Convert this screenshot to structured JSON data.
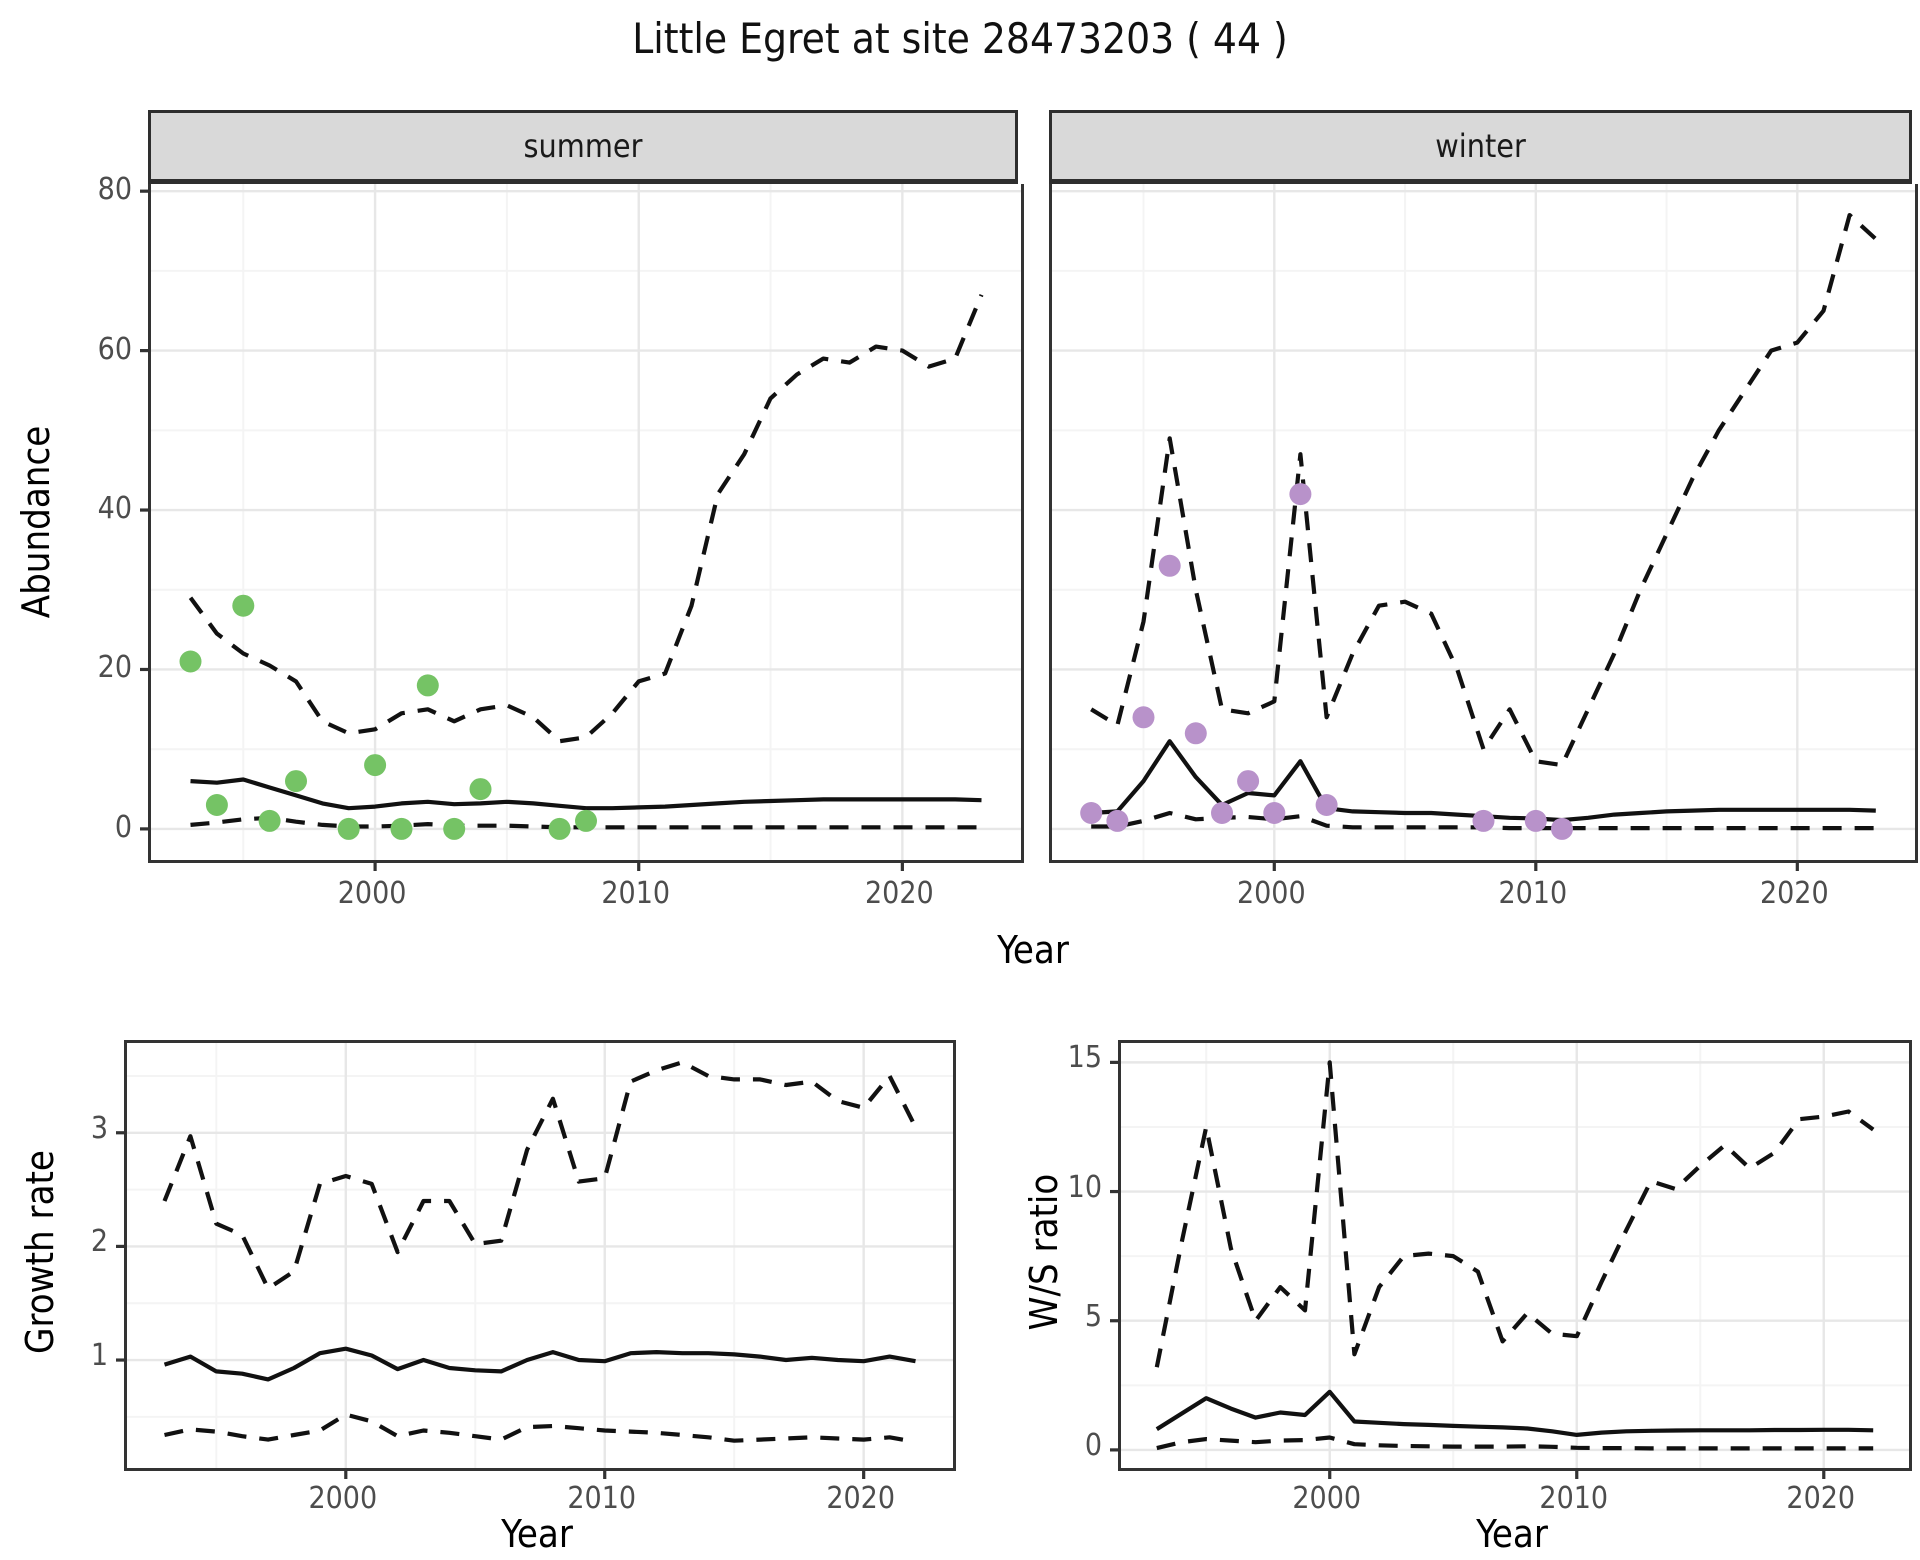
{
  "title": "Little Egret at site 28473203 ( 44 )",
  "style": {
    "summer_point_color": "#75c365",
    "winter_point_color": "#b892ca",
    "line_color": "#111111",
    "grid_major": "#e7e7e7",
    "grid_minor": "#f4f4f4",
    "strip_fill": "#d9d9d9",
    "border_color": "#333333",
    "tick_color": "#333333",
    "tick_label_color": "#4d4d4d"
  },
  "top_row": {
    "y_axis_label": "Abundance",
    "x_axis_label": "Year",
    "facets": [
      {
        "label": "summer"
      },
      {
        "label": "winter"
      }
    ]
  },
  "bottom_row": {
    "plots": [
      {
        "y_axis_label": "Growth rate",
        "x_axis_label": "Year"
      },
      {
        "y_axis_label": "W/S ratio",
        "x_axis_label": "Year"
      }
    ]
  },
  "chart_data": [
    {
      "id": "abundance-summer",
      "type": "line",
      "facet": "summer",
      "ylabel": "Abundance",
      "xlabel": "Year",
      "xlim": [
        1991.5,
        2024.5
      ],
      "ylim": [
        -3.9,
        80.9
      ],
      "xticks": [
        2000,
        2010,
        2020
      ],
      "x_minor": [
        1995,
        2005,
        2015
      ],
      "yticks": [
        0,
        20,
        40,
        60,
        80
      ],
      "y_minor": [
        10,
        30,
        50,
        70
      ],
      "x": [
        1993,
        1994,
        1995,
        1996,
        1997,
        1998,
        1999,
        2000,
        2001,
        2002,
        2003,
        2004,
        2005,
        2006,
        2007,
        2008,
        2009,
        2010,
        2011,
        2012,
        2013,
        2014,
        2015,
        2016,
        2017,
        2018,
        2019,
        2020,
        2021,
        2022,
        2023
      ],
      "series": [
        {
          "name": "upper-ci",
          "style": "dashed",
          "values": [
            29,
            24.5,
            22,
            20.5,
            18.5,
            13.5,
            12,
            12.5,
            14.5,
            15,
            13.5,
            15,
            15.5,
            14,
            11,
            11.5,
            14.5,
            18.5,
            19.5,
            28,
            42,
            47,
            54,
            57,
            59,
            58.5,
            60.5,
            60,
            58,
            59,
            67
          ]
        },
        {
          "name": "estimate",
          "style": "solid",
          "values": [
            6,
            5.8,
            6.2,
            5.2,
            4.2,
            3.2,
            2.6,
            2.8,
            3.2,
            3.4,
            3.1,
            3.2,
            3.4,
            3.2,
            2.9,
            2.6,
            2.6,
            2.7,
            2.8,
            3,
            3.2,
            3.4,
            3.5,
            3.6,
            3.7,
            3.7,
            3.7,
            3.7,
            3.7,
            3.7,
            3.6
          ]
        },
        {
          "name": "lower-ci",
          "style": "dashed",
          "values": [
            0.5,
            0.8,
            1.2,
            1.4,
            0.9,
            0.5,
            0.3,
            0.3,
            0.4,
            0.6,
            0.4,
            0.4,
            0.4,
            0.3,
            0.2,
            0.2,
            0.2,
            0.2,
            0.2,
            0.2,
            0.2,
            0.2,
            0.2,
            0.2,
            0.2,
            0.2,
            0.2,
            0.2,
            0.2,
            0.2,
            0.2
          ]
        }
      ],
      "observed_points": {
        "color": "#75c365",
        "data": [
          [
            1993,
            21
          ],
          [
            1994,
            3
          ],
          [
            1995,
            28
          ],
          [
            1996,
            1
          ],
          [
            1997,
            6
          ],
          [
            1999,
            0
          ],
          [
            2000,
            8
          ],
          [
            2001,
            0
          ],
          [
            2002,
            18
          ],
          [
            2003,
            0
          ],
          [
            2004,
            5
          ],
          [
            2007,
            0
          ],
          [
            2008,
            1
          ]
        ]
      }
    },
    {
      "id": "abundance-winter",
      "type": "line",
      "facet": "winter",
      "ylabel": "Abundance",
      "xlabel": "Year",
      "xlim": [
        1991.5,
        2024.5
      ],
      "ylim": [
        -3.9,
        80.9
      ],
      "xticks": [
        2000,
        2010,
        2020
      ],
      "x_minor": [
        1995,
        2005,
        2015
      ],
      "yticks": [
        0,
        20,
        40,
        60,
        80
      ],
      "y_minor": [
        10,
        30,
        50,
        70
      ],
      "x": [
        1993,
        1994,
        1995,
        1996,
        1997,
        1998,
        1999,
        2000,
        2001,
        2002,
        2003,
        2004,
        2005,
        2006,
        2007,
        2008,
        2009,
        2010,
        2011,
        2012,
        2013,
        2014,
        2015,
        2016,
        2017,
        2018,
        2019,
        2020,
        2021,
        2022,
        2023
      ],
      "series": [
        {
          "name": "upper-ci",
          "style": "dashed",
          "values": [
            15,
            13,
            26,
            49,
            30,
            15,
            14.5,
            16,
            47,
            14,
            22,
            28,
            28.5,
            27,
            20,
            10,
            15,
            8.5,
            8,
            15,
            22,
            30,
            37,
            44,
            50,
            55,
            60,
            61,
            65,
            77,
            74
          ]
        },
        {
          "name": "estimate",
          "style": "solid",
          "values": [
            2,
            2.2,
            6,
            11,
            6.5,
            3,
            4.5,
            4.2,
            8.5,
            2.6,
            2.2,
            2.1,
            2,
            2,
            1.8,
            1.6,
            1.4,
            1.3,
            1.1,
            1.4,
            1.8,
            2,
            2.2,
            2.3,
            2.4,
            2.4,
            2.4,
            2.4,
            2.4,
            2.4,
            2.3
          ]
        },
        {
          "name": "lower-ci",
          "style": "dashed",
          "values": [
            0.3,
            0.3,
            1,
            2,
            1.2,
            1.4,
            1.5,
            1.2,
            1.6,
            0.4,
            0.2,
            0.2,
            0.2,
            0.2,
            0.2,
            0.2,
            0.1,
            0.1,
            0.1,
            0.1,
            0.1,
            0.1,
            0.1,
            0.1,
            0.1,
            0.1,
            0.1,
            0.1,
            0.1,
            0.1,
            0.1
          ]
        }
      ],
      "observed_points": {
        "color": "#b892ca",
        "data": [
          [
            1993,
            2
          ],
          [
            1994,
            1
          ],
          [
            1995,
            14
          ],
          [
            1996,
            33
          ],
          [
            1997,
            12
          ],
          [
            1998,
            2
          ],
          [
            1999,
            6
          ],
          [
            2000,
            2
          ],
          [
            2001,
            42
          ],
          [
            2002,
            3
          ],
          [
            2008,
            1
          ],
          [
            2010,
            1
          ],
          [
            2011,
            0
          ]
        ]
      }
    },
    {
      "id": "growth-rate",
      "type": "line",
      "ylabel": "Growth rate",
      "xlabel": "Year",
      "xlim": [
        1991.55,
        2023.45
      ],
      "ylim": [
        0.05,
        3.79
      ],
      "xticks": [
        2000,
        2010,
        2020
      ],
      "x_minor": [
        1995,
        2005,
        2015
      ],
      "yticks": [
        1,
        2,
        3
      ],
      "y_minor": [
        0.5,
        1.5,
        2.5,
        3.5
      ],
      "x": [
        1993,
        1994,
        1995,
        1996,
        1997,
        1998,
        1999,
        2000,
        2001,
        2002,
        2003,
        2004,
        2005,
        2006,
        2007,
        2008,
        2009,
        2010,
        2011,
        2012,
        2013,
        2014,
        2015,
        2016,
        2017,
        2018,
        2019,
        2020,
        2021,
        2022
      ],
      "series": [
        {
          "name": "upper-ci",
          "style": "dashed",
          "values": [
            2.4,
            2.97,
            2.2,
            2.1,
            1.63,
            1.78,
            2.55,
            2.62,
            2.55,
            1.95,
            2.4,
            2.4,
            2.02,
            2.05,
            2.85,
            3.3,
            2.57,
            2.6,
            3.45,
            3.55,
            3.62,
            3.5,
            3.47,
            3.47,
            3.42,
            3.45,
            3.28,
            3.22,
            3.5,
            3.05
          ]
        },
        {
          "name": "estimate",
          "style": "solid",
          "values": [
            0.96,
            1.03,
            0.9,
            0.88,
            0.83,
            0.93,
            1.06,
            1.1,
            1.04,
            0.92,
            1,
            0.93,
            0.91,
            0.9,
            1,
            1.07,
            1,
            0.99,
            1.06,
            1.07,
            1.06,
            1.06,
            1.05,
            1.03,
            1,
            1.02,
            1,
            0.99,
            1.03,
            0.99
          ]
        },
        {
          "name": "lower-ci",
          "style": "dashed",
          "values": [
            0.34,
            0.39,
            0.37,
            0.33,
            0.3,
            0.34,
            0.38,
            0.52,
            0.46,
            0.33,
            0.38,
            0.36,
            0.33,
            0.3,
            0.41,
            0.42,
            0.4,
            0.38,
            0.37,
            0.36,
            0.34,
            0.32,
            0.29,
            0.3,
            0.31,
            0.32,
            0.31,
            0.3,
            0.32,
            0.28
          ]
        }
      ]
    },
    {
      "id": "ws-ratio",
      "type": "line",
      "ylabel": "W/S ratio",
      "xlabel": "Year",
      "xlim": [
        1991.55,
        2023.45
      ],
      "ylim": [
        -0.7,
        15.75
      ],
      "xticks": [
        2000,
        2010,
        2020
      ],
      "x_minor": [
        1995,
        2005,
        2015
      ],
      "yticks": [
        0,
        5,
        10,
        15
      ],
      "y_minor": [
        2.5,
        7.5,
        12.5
      ],
      "x": [
        1993,
        1994,
        1995,
        1996,
        1997,
        1998,
        1999,
        2000,
        2001,
        2002,
        2003,
        2004,
        2005,
        2006,
        2007,
        2008,
        2009,
        2010,
        2011,
        2012,
        2013,
        2014,
        2015,
        2016,
        2017,
        2018,
        2019,
        2020,
        2021,
        2022
      ],
      "series": [
        {
          "name": "upper-ci",
          "style": "dashed",
          "values": [
            3.2,
            8,
            12.5,
            7.8,
            5,
            6.3,
            5.4,
            15,
            3.7,
            6.3,
            7.5,
            7.6,
            7.5,
            6.9,
            4.2,
            5.3,
            4.5,
            4.4,
            6.5,
            8.5,
            10.4,
            10.1,
            11,
            11.8,
            10.9,
            11.5,
            12.8,
            12.9,
            13.1,
            12.4
          ]
        },
        {
          "name": "estimate",
          "style": "solid",
          "values": [
            0.8,
            1.4,
            2,
            1.6,
            1.25,
            1.45,
            1.35,
            2.25,
            1.1,
            1.05,
            1,
            0.97,
            0.93,
            0.9,
            0.87,
            0.83,
            0.72,
            0.58,
            0.67,
            0.72,
            0.74,
            0.75,
            0.76,
            0.76,
            0.76,
            0.77,
            0.77,
            0.78,
            0.78,
            0.76
          ]
        },
        {
          "name": "lower-ci",
          "style": "dashed",
          "values": [
            0.07,
            0.3,
            0.42,
            0.36,
            0.3,
            0.36,
            0.38,
            0.48,
            0.22,
            0.18,
            0.15,
            0.14,
            0.13,
            0.13,
            0.13,
            0.14,
            0.12,
            0.08,
            0.07,
            0.07,
            0.06,
            0.06,
            0.06,
            0.06,
            0.06,
            0.06,
            0.06,
            0.06,
            0.06,
            0.06
          ]
        }
      ]
    }
  ]
}
